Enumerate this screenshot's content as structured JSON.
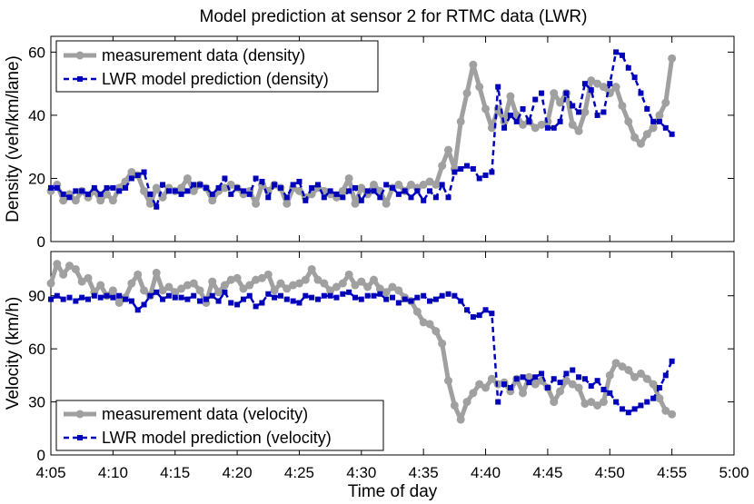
{
  "chart_data": {
    "title": "Model prediction at sensor 2 for RTMC data (LWR)",
    "xlabel": "Time of day",
    "x_tick_labels": [
      "4:05",
      "4:10",
      "4:15",
      "4:20",
      "4:25",
      "4:30",
      "4:35",
      "4:40",
      "4:45",
      "4:50",
      "4:55",
      "5:00"
    ],
    "x_ticks_minutes": [
      245,
      250,
      255,
      260,
      265,
      270,
      275,
      280,
      285,
      290,
      295,
      300
    ],
    "xlim": [
      245,
      300
    ],
    "colors": {
      "measurement": "#a0a0a0",
      "prediction": "#0000bb"
    },
    "panels": [
      {
        "type": "line",
        "ylabel": "Density (veh/km/lane)",
        "ylim": [
          0,
          65
        ],
        "y_ticks": [
          0,
          20,
          40,
          60
        ],
        "legend_position": "top-left",
        "x": [
          245.0,
          245.5,
          246.0,
          246.5,
          247.0,
          247.5,
          248.0,
          248.5,
          249.0,
          249.5,
          250.0,
          250.5,
          251.0,
          251.5,
          252.0,
          252.5,
          253.0,
          253.5,
          254.0,
          254.5,
          255.0,
          255.5,
          256.0,
          256.5,
          257.0,
          257.5,
          258.0,
          258.5,
          259.0,
          259.5,
          260.0,
          260.5,
          261.0,
          261.5,
          262.0,
          262.5,
          263.0,
          263.5,
          264.0,
          264.5,
          265.0,
          265.5,
          266.0,
          266.5,
          267.0,
          267.5,
          268.0,
          268.5,
          269.0,
          269.5,
          270.0,
          270.5,
          271.0,
          271.5,
          272.0,
          272.5,
          273.0,
          273.5,
          274.0,
          274.5,
          275.0,
          275.5,
          276.0,
          276.5,
          277.0,
          277.5,
          278.0,
          278.5,
          279.0,
          279.5,
          280.0,
          280.5,
          281.0,
          281.5,
          282.0,
          282.5,
          283.0,
          283.5,
          284.0,
          284.5,
          285.0,
          285.5,
          286.0,
          286.5,
          287.0,
          287.5,
          288.0,
          288.5,
          289.0,
          289.5,
          290.0,
          290.5,
          291.0,
          291.5,
          292.0,
          292.5,
          293.0,
          293.5,
          294.0,
          294.5,
          295.0,
          295.5,
          296.0,
          296.5,
          297.0,
          297.5,
          298.0,
          298.5,
          299.0,
          299.5,
          300.0
        ],
        "series": [
          {
            "name": "measurement data (density)",
            "style": "solid",
            "values": [
              16,
              18,
              13,
              15,
              13,
              16,
              14,
              16,
              13,
              15,
              13,
              17,
              19,
              22,
              21,
              16,
              12,
              17,
              14,
              17,
              16,
              17,
              20,
              16,
              18,
              17,
              13,
              16,
              17,
              18,
              17,
              15,
              16,
              12,
              18,
              16,
              18,
              17,
              12,
              17,
              16,
              14,
              15,
              17,
              16,
              15,
              14,
              16,
              20,
              12,
              17,
              15,
              18,
              16,
              12,
              17,
              18,
              16,
              18,
              17,
              18,
              19,
              18,
              24,
              29,
              23,
              38,
              47,
              56,
              49,
              42,
              36,
              42,
              38,
              46,
              40,
              37,
              38,
              36,
              37,
              38,
              47,
              44,
              47,
              37,
              35,
              41,
              51,
              50,
              49,
              47,
              49,
              43,
              38,
              33,
              31,
              34,
              36,
              40,
              44,
              58
            ]
          },
          {
            "name": "LWR model prediction (density)",
            "style": "dashed",
            "values": [
              17,
              17,
              15,
              14,
              16,
              16,
              15,
              17,
              15,
              17,
              17,
              16,
              17,
              20,
              21,
              22,
              15,
              11,
              18,
              16,
              16,
              15,
              16,
              18,
              18,
              17,
              15,
              17,
              20,
              15,
              17,
              16,
              15,
              20,
              19,
              14,
              18,
              17,
              14,
              18,
              19,
              13,
              17,
              18,
              14,
              16,
              15,
              14,
              16,
              17,
              13,
              16,
              16,
              14,
              18,
              17,
              15,
              16,
              14,
              16,
              13,
              16,
              14,
              18,
              14,
              22,
              23,
              24,
              23,
              20,
              21,
              22,
              49,
              36,
              40,
              38,
              42,
              38,
              45,
              47,
              36,
              36,
              38,
              47,
              43,
              41,
              50,
              48,
              40,
              41,
              50,
              60,
              59,
              55,
              52,
              47,
              42,
              38,
              38,
              36,
              34
            ]
          }
        ]
      },
      {
        "type": "line",
        "ylabel": "Velocity (km/h)",
        "ylim": [
          0,
          115
        ],
        "y_ticks": [
          0,
          30,
          60,
          90
        ],
        "legend_position": "bottom-left",
        "x": [
          245.0,
          245.5,
          246.0,
          246.5,
          247.0,
          247.5,
          248.0,
          248.5,
          249.0,
          249.5,
          250.0,
          250.5,
          251.0,
          251.5,
          252.0,
          252.5,
          253.0,
          253.5,
          254.0,
          254.5,
          255.0,
          255.5,
          256.0,
          256.5,
          257.0,
          257.5,
          258.0,
          258.5,
          259.0,
          259.5,
          260.0,
          260.5,
          261.0,
          261.5,
          262.0,
          262.5,
          263.0,
          263.5,
          264.0,
          264.5,
          265.0,
          265.5,
          266.0,
          266.5,
          267.0,
          267.5,
          268.0,
          268.5,
          269.0,
          269.5,
          270.0,
          270.5,
          271.0,
          271.5,
          272.0,
          272.5,
          273.0,
          273.5,
          274.0,
          274.5,
          275.0,
          275.5,
          276.0,
          276.5,
          277.0,
          277.5,
          278.0,
          278.5,
          279.0,
          279.5,
          280.0,
          280.5,
          281.0,
          281.5,
          282.0,
          282.5,
          283.0,
          283.5,
          284.0,
          284.5,
          285.0,
          285.5,
          286.0,
          286.5,
          287.0,
          287.5,
          288.0,
          288.5,
          289.0,
          289.5,
          290.0,
          290.5,
          291.0,
          291.5,
          292.0,
          292.5,
          293.0,
          293.5,
          294.0,
          294.5,
          295.0,
          295.5,
          296.0,
          296.5,
          297.0,
          297.5,
          298.0,
          298.5,
          299.0,
          299.5,
          300.0
        ],
        "series": [
          {
            "name": "measurement data (velocity)",
            "style": "solid",
            "values": [
              97,
              108,
              102,
              107,
              105,
              98,
              100,
              92,
              96,
              90,
              93,
              86,
              89,
              97,
              102,
              93,
              90,
              103,
              93,
              95,
              92,
              94,
              96,
              97,
              93,
              86,
              98,
              92,
              96,
              99,
              100,
              94,
              96,
              99,
              100,
              102,
              93,
              97,
              94,
              96,
              97,
              99,
              105,
              99,
              97,
              93,
              95,
              97,
              102,
              96,
              98,
              95,
              99,
              94,
              92,
              95,
              93,
              89,
              87,
              81,
              75,
              74,
              70,
              63,
              42,
              28,
              20,
              30,
              35,
              40,
              38,
              43,
              40,
              41,
              36,
              43,
              35,
              44,
              40,
              42,
              38,
              30,
              36,
              42,
              40,
              38,
              29,
              30,
              28,
              30,
              45,
              52,
              50,
              48,
              44,
              46,
              43,
              40,
              32,
              25,
              23
            ]
          },
          {
            "name": "LWR model prediction (velocity)",
            "style": "dashed",
            "values": [
              88,
              90,
              88,
              89,
              87,
              89,
              88,
              90,
              89,
              90,
              89,
              90,
              88,
              87,
              82,
              85,
              90,
              92,
              88,
              90,
              89,
              89,
              88,
              90,
              87,
              88,
              90,
              87,
              92,
              86,
              85,
              88,
              90,
              84,
              86,
              91,
              89,
              90,
              88,
              87,
              86,
              90,
              89,
              88,
              90,
              90,
              89,
              91,
              92,
              89,
              88,
              90,
              90,
              91,
              88,
              89,
              86,
              88,
              87,
              89,
              90,
              87,
              88,
              90,
              91,
              90,
              87,
              82,
              78,
              79,
              82,
              80,
              30,
              40,
              38,
              43,
              44,
              41,
              44,
              46,
              38,
              43,
              41,
              46,
              48,
              44,
              43,
              39,
              42,
              37,
              35,
              30,
              26,
              24,
              26,
              28,
              30,
              32,
              38,
              45,
              53
            ]
          }
        ]
      }
    ]
  }
}
